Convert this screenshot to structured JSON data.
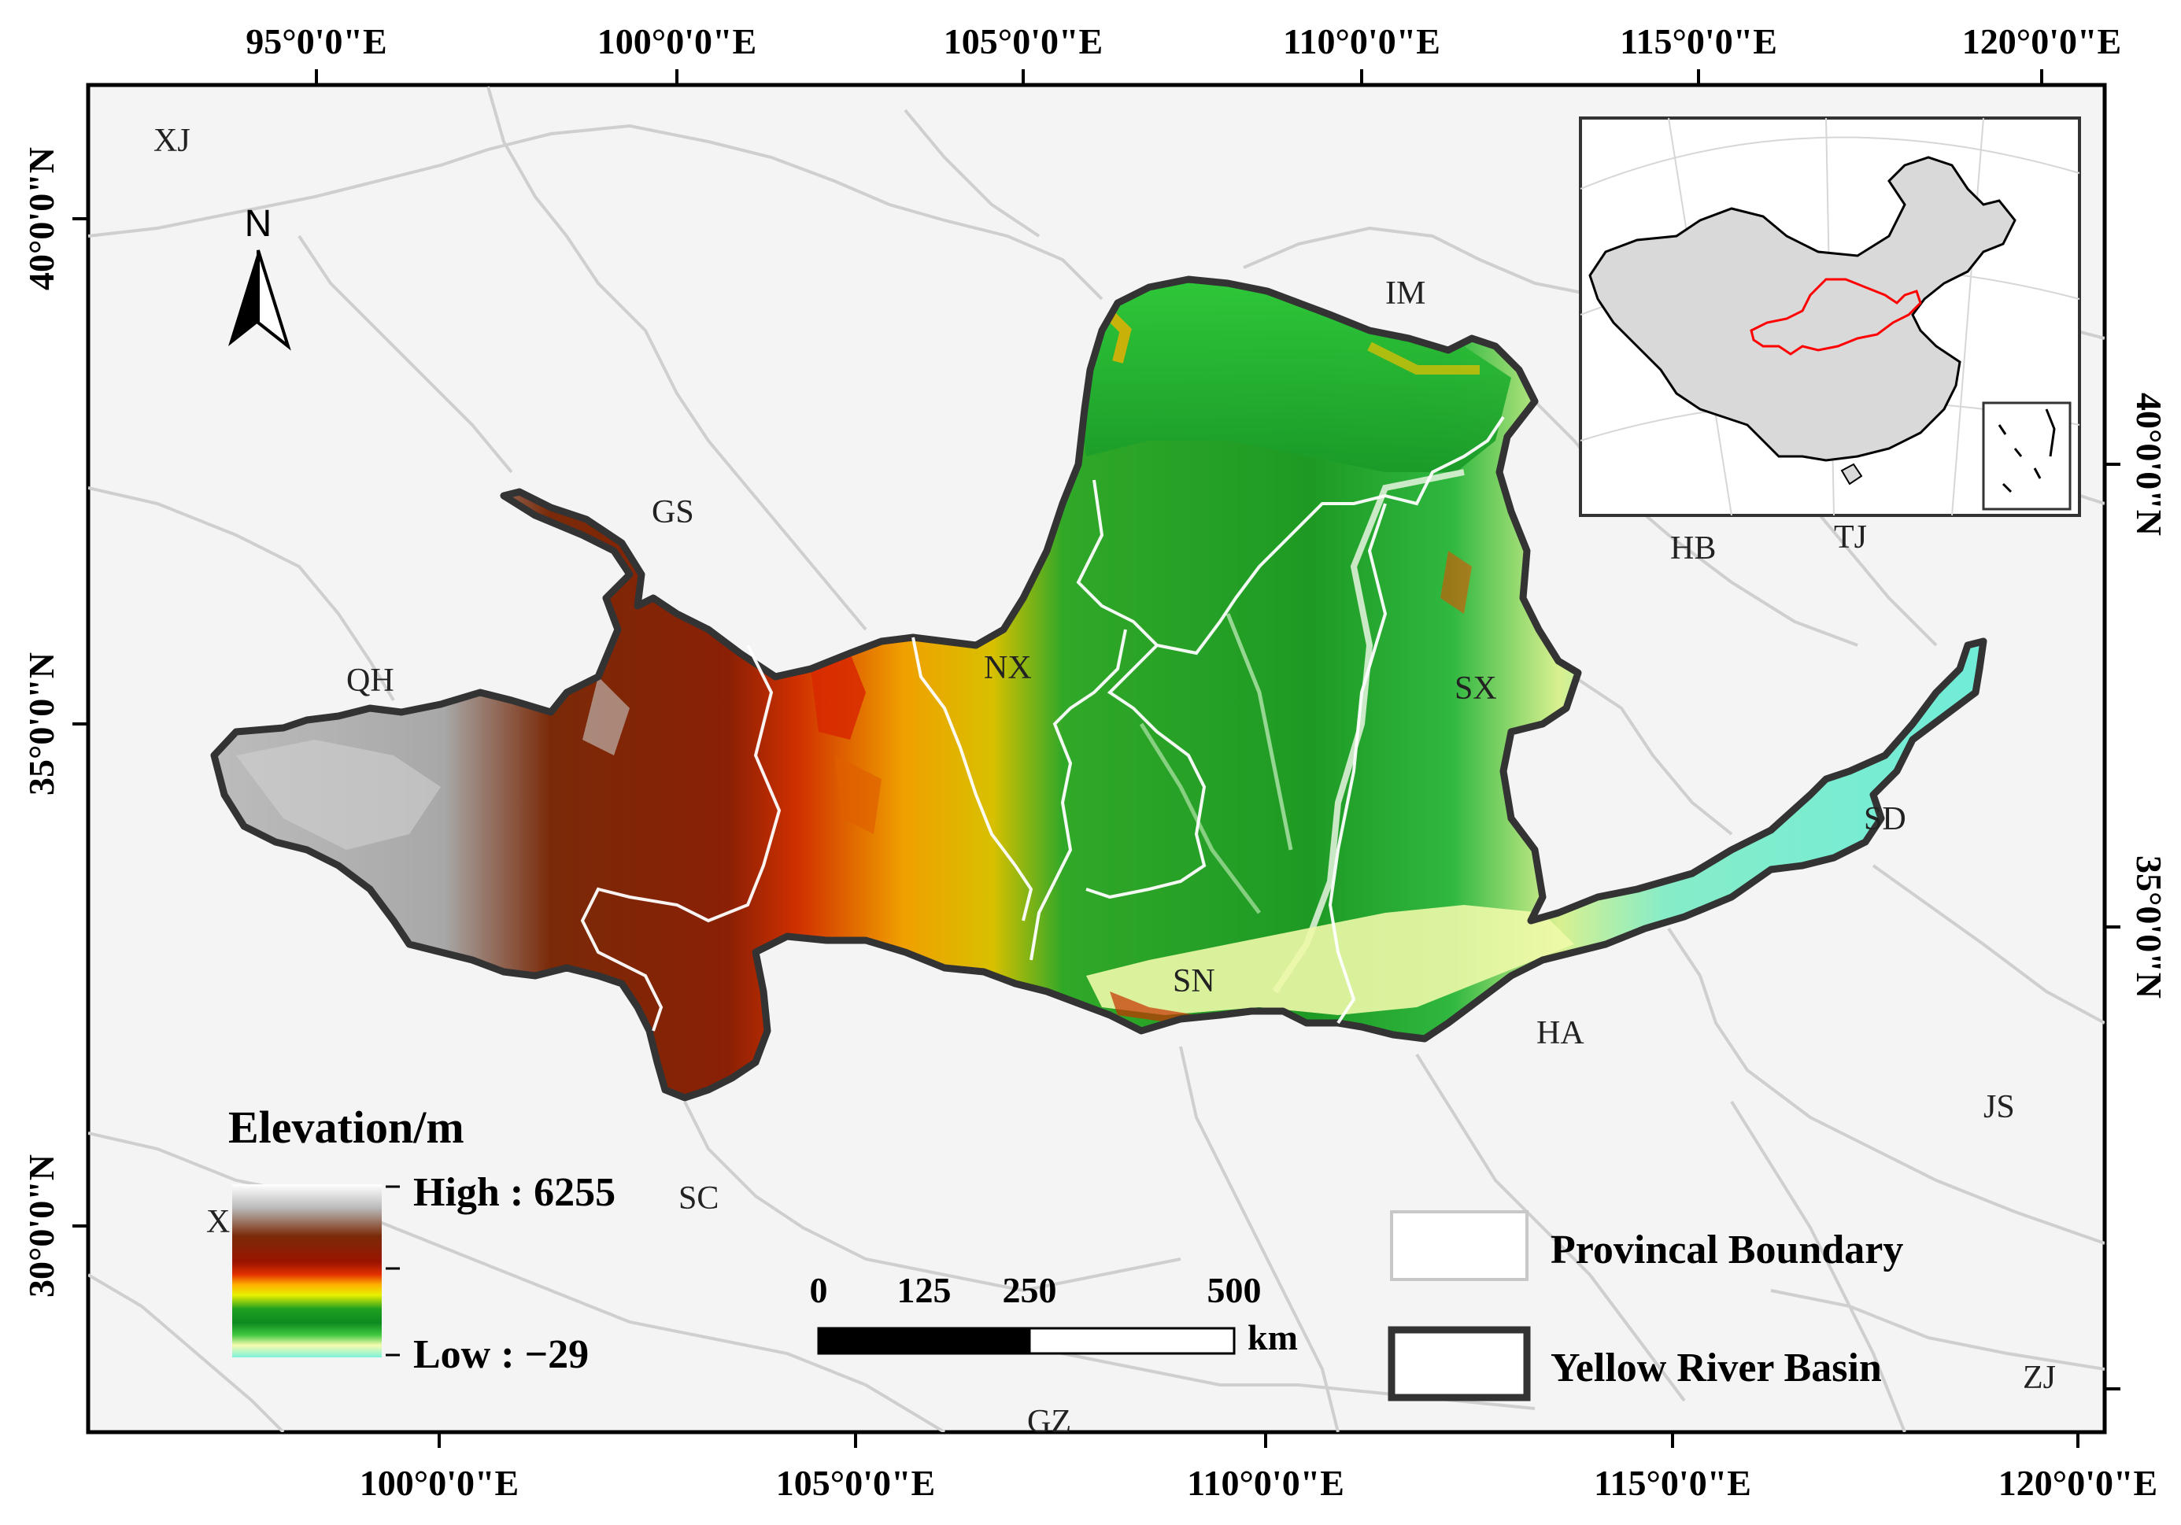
{
  "map": {
    "top_lon_labels": [
      "95°0'0\"E",
      "100°0'0\"E",
      "105°0'0\"E",
      "110°0'0\"E",
      "115°0'0\"E",
      "120°0'0\"E"
    ],
    "bottom_lon_labels": [
      "100°0'0\"E",
      "105°0'0\"E",
      "110°0'0\"E",
      "115°0'0\"E",
      "120°0'0\"E"
    ],
    "left_lat_labels": [
      "40°0'0\"N",
      "35°0'0\"N",
      "30°0'0\"N"
    ],
    "right_lat_labels": [
      "40°0'0\"N",
      "35°0'0\"N"
    ],
    "north_label": "N",
    "provinces": {
      "xj": "XJ",
      "gs": "GS",
      "qh": "QH",
      "nx": "NX",
      "im": "IM",
      "sx": "SX",
      "sn": "SN",
      "hb": "HB",
      "tj": "TJ",
      "sd": "SD",
      "ha": "HA",
      "js": "JS",
      "sc": "SC",
      "gz": "GZ",
      "zj": "ZJ",
      "x1": "X",
      "x2": "X"
    },
    "elevation_legend": {
      "title": "Elevation/m",
      "high": "High : 6255",
      "low": "Low : −29",
      "high_value": 6255,
      "low_value": -29
    },
    "scale_bar": {
      "ticks": [
        "0",
        "125",
        "250",
        "500"
      ],
      "unit": "km"
    },
    "boundary_legend": {
      "provincial": "Provincal Boundary",
      "basin": "Yellow River Basin"
    },
    "colors": {
      "high": "#ffffff",
      "grey": "#b8b8b8",
      "brown": "#7a2a08",
      "red": "#c81800",
      "orange": "#ff9a00",
      "yellow": "#f3f000",
      "green": "#1fa020",
      "bright_green": "#2fc83a",
      "pale_yellow": "#f6fbb0",
      "cyan_low": "#7ef2d8",
      "basin_outline": "#333333",
      "province_line": "#c8c8c8",
      "inset_china": "#d9d9d9",
      "inset_basin": "#ff0000"
    }
  }
}
